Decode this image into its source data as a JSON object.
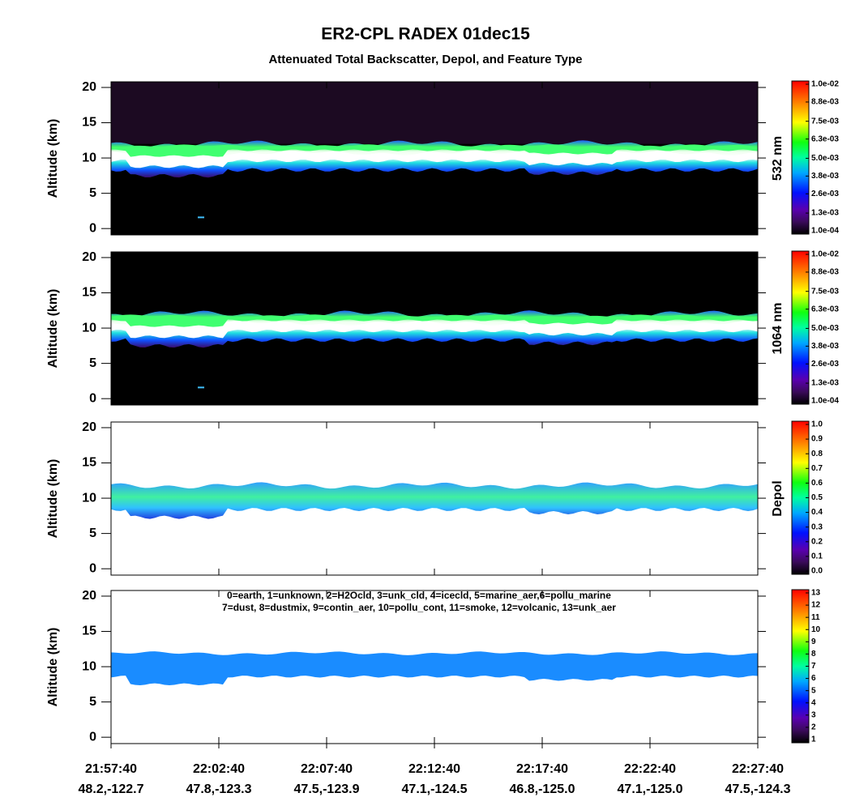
{
  "title": "ER2-CPL RADEX 01dec15",
  "subtitle": "Attenuated Total Backscatter, Depol, and Feature Type",
  "chart_data": [
    {
      "type": "heatmap",
      "ylabel": "Altitude (km)",
      "ylim": [
        -0.9,
        20.8
      ],
      "yticks": [
        0,
        5,
        10,
        15,
        20
      ],
      "colorbar_label": "532 nm",
      "clim": [
        0.0001,
        0.01
      ],
      "cticks": [
        {
          "value": 0.0001,
          "label": "1.0e-04"
        },
        {
          "value": 0.0013,
          "label": "1.3e-03"
        },
        {
          "value": 0.0026,
          "label": "2.6e-03"
        },
        {
          "value": 0.0038,
          "label": "3.8e-03"
        },
        {
          "value": 0.005,
          "label": "5.0e-03"
        },
        {
          "value": 0.0063,
          "label": "6.3e-03"
        },
        {
          "value": 0.0075,
          "label": "7.5e-03"
        },
        {
          "value": 0.0088,
          "label": "8.8e-03"
        },
        {
          "value": 0.01,
          "label": "1.0e-02"
        }
      ]
    },
    {
      "type": "heatmap",
      "ylabel": "Altitude (km)",
      "ylim": [
        -0.9,
        20.8
      ],
      "yticks": [
        0,
        5,
        10,
        15,
        20
      ],
      "colorbar_label": "1064 nm",
      "clim": [
        0.0001,
        0.01
      ],
      "cticks": [
        {
          "value": 0.0001,
          "label": "1.0e-04"
        },
        {
          "value": 0.0013,
          "label": "1.3e-03"
        },
        {
          "value": 0.0026,
          "label": "2.6e-03"
        },
        {
          "value": 0.0038,
          "label": "3.8e-03"
        },
        {
          "value": 0.005,
          "label": "5.0e-03"
        },
        {
          "value": 0.0063,
          "label": "6.3e-03"
        },
        {
          "value": 0.0075,
          "label": "7.5e-03"
        },
        {
          "value": 0.0088,
          "label": "8.8e-03"
        },
        {
          "value": 0.01,
          "label": "1.0e-02"
        }
      ]
    },
    {
      "type": "heatmap",
      "ylabel": "Altitude (km)",
      "ylim": [
        -0.9,
        20.8
      ],
      "yticks": [
        0,
        5,
        10,
        15,
        20
      ],
      "colorbar_label": "Depol",
      "clim": [
        0,
        1
      ],
      "cticks": [
        {
          "value": 0,
          "label": "0.0"
        },
        0.1,
        0.2,
        0.3,
        0.4,
        0.5,
        0.6,
        0.7,
        0.8,
        0.9,
        {
          "value": 1,
          "label": "1.0"
        }
      ]
    },
    {
      "type": "heatmap",
      "ylabel": "Altitude (km)",
      "ylim": [
        -0.9,
        20.8
      ],
      "yticks": [
        0,
        5,
        10,
        15,
        20
      ],
      "clim": [
        1,
        13
      ],
      "cticks": [
        1,
        2,
        3,
        4,
        5,
        6,
        7,
        8,
        9,
        10,
        11,
        12,
        13
      ],
      "annotations": [
        "0=earth, 1=unknown, 2=H2Ocld, 3=unk_cld, 4=icecld, 5=marine_aer,6=pollu_marine",
        "7=dust, 8=dustmix, 9=contin_aer, 10=pollu_cont, 11=smoke, 12=volcanic, 13=unk_aer"
      ],
      "categories": [
        "21:57:40",
        "22:02:40",
        "22:07:40",
        "22:12:40",
        "22:17:40",
        "22:22:40",
        "22:27:40"
      ],
      "category_sublabels": [
        "48.2,-122.7",
        "47.8,-123.3",
        "47.5,-123.9",
        "47.1,-124.5",
        "46.8,-125.0",
        "47.1,-125.0",
        "47.5,-124.3"
      ]
    }
  ]
}
